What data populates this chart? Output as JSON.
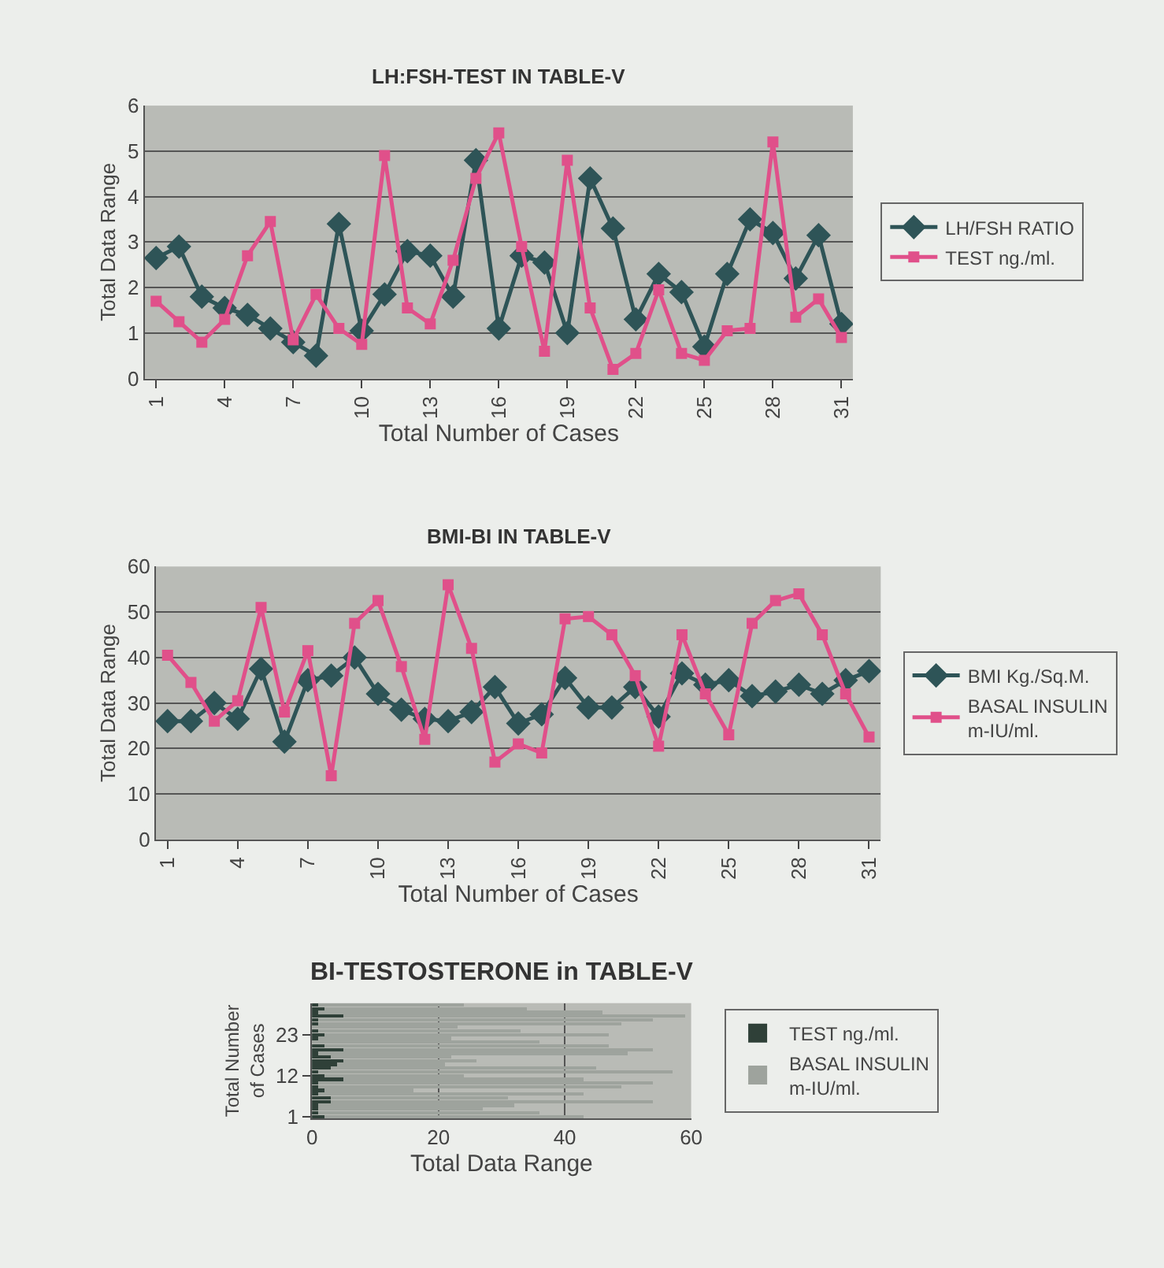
{
  "chart_data": [
    {
      "type": "line",
      "title": "LH:FSH-TEST IN TABLE-V",
      "xlabel": "Total Number of Cases",
      "ylabel": "Total Data Range",
      "categories": [
        "1",
        null,
        null,
        "4",
        null,
        null,
        "7",
        null,
        null,
        "10",
        null,
        null,
        "13",
        null,
        null,
        "16",
        null,
        null,
        "19",
        null,
        null,
        "22",
        null,
        null,
        "25",
        null,
        null,
        "28",
        null,
        null,
        "31"
      ],
      "ylim": [
        0,
        6
      ],
      "yticks": [
        0,
        1,
        2,
        3,
        4,
        5,
        6
      ],
      "grid": "y",
      "legend": "right",
      "series": [
        {
          "name": "LH/FSH RATIO",
          "color": "#2e5457",
          "marker": "diamond",
          "values": [
            2.65,
            2.9,
            1.8,
            1.55,
            1.4,
            1.1,
            0.8,
            0.5,
            3.4,
            1.05,
            1.85,
            2.8,
            2.7,
            1.8,
            4.8,
            1.1,
            2.7,
            2.55,
            1.0,
            4.4,
            3.3,
            1.3,
            2.3,
            1.9,
            0.7,
            2.3,
            3.5,
            3.2,
            2.2,
            3.15,
            1.2
          ]
        },
        {
          "name": "TEST ng./ml.",
          "color": "#e0508a",
          "marker": "square",
          "values": [
            1.7,
            1.25,
            0.8,
            1.3,
            2.7,
            3.45,
            0.85,
            1.85,
            1.1,
            0.75,
            4.9,
            1.55,
            1.2,
            2.6,
            4.4,
            5.4,
            2.9,
            0.6,
            4.8,
            1.55,
            0.2,
            0.55,
            1.95,
            0.55,
            0.4,
            1.05,
            1.1,
            5.2,
            1.35,
            1.75,
            0.9
          ]
        }
      ]
    },
    {
      "type": "line",
      "title": "BMI-BI IN TABLE-V",
      "xlabel": "Total Number of Cases",
      "ylabel": "Total Data Range",
      "categories": [
        "1",
        null,
        null,
        "4",
        null,
        null,
        "7",
        null,
        null,
        "10",
        null,
        null,
        "13",
        null,
        null,
        "16",
        null,
        null,
        "19",
        null,
        null,
        "22",
        null,
        null,
        "25",
        null,
        null,
        "28",
        null,
        null,
        "31"
      ],
      "ylim": [
        0,
        60
      ],
      "yticks": [
        0,
        10,
        20,
        30,
        40,
        50,
        60
      ],
      "grid": "y",
      "legend": "right",
      "series": [
        {
          "name": "BMI Kg./Sq.M.",
          "color": "#2e5457",
          "marker": "diamond",
          "values": [
            26,
            26,
            30,
            26.5,
            37.5,
            21.5,
            35,
            36,
            40,
            32,
            28.5,
            26.5,
            26,
            28,
            33.5,
            25.5,
            27.5,
            35.5,
            29,
            29,
            33.5,
            27,
            36.5,
            34,
            35,
            31.5,
            32.5,
            34,
            32,
            35,
            37
          ]
        },
        {
          "name": "BASAL INSULIN m-IU/ml.",
          "color": "#e0508a",
          "marker": "square",
          "values": [
            40.5,
            34.5,
            26,
            30.5,
            51,
            28,
            41.5,
            14,
            47.5,
            52.5,
            38,
            22,
            56,
            42,
            17,
            21,
            19,
            48.5,
            49,
            45,
            36,
            20.5,
            45,
            32,
            23,
            47.5,
            52.5,
            54,
            45,
            32,
            22.5
          ]
        }
      ]
    },
    {
      "type": "bar",
      "orientation": "horizontal",
      "stacked": true,
      "title": "BI-TESTOSTERONE in TABLE-V",
      "xlabel": "Total Data Range",
      "ylabel": "Total Number of Cases",
      "categories": [
        null,
        null,
        null,
        null,
        null,
        null,
        null,
        null,
        "23",
        null,
        null,
        null,
        null,
        null,
        null,
        null,
        null,
        null,
        null,
        "12",
        null,
        null,
        null,
        null,
        null,
        null,
        null,
        null,
        null,
        null,
        "1"
      ],
      "xlim": [
        0,
        60
      ],
      "xticks": [
        0,
        20,
        40,
        60
      ],
      "grid": "x",
      "legend": "right",
      "series": [
        {
          "name": "TEST ng./ml.",
          "color": "#2f4038",
          "values": [
            1,
            2,
            1,
            5,
            1,
            1,
            0,
            1,
            2,
            1,
            0,
            2,
            5,
            1,
            3,
            5,
            4,
            3,
            1,
            2,
            5,
            1,
            1,
            2,
            1,
            3,
            3,
            1,
            1,
            1,
            2
          ]
        },
        {
          "name": "BASAL INSULIN m-IU/ml.",
          "color": "#9ea39d",
          "values": [
            23,
            32,
            45,
            54,
            53,
            48,
            23,
            32,
            45,
            21,
            36,
            45,
            49,
            49,
            19,
            21,
            17,
            42,
            56,
            22,
            38,
            53,
            48,
            14,
            42,
            28,
            51,
            31,
            26,
            35,
            41
          ]
        }
      ]
    }
  ]
}
